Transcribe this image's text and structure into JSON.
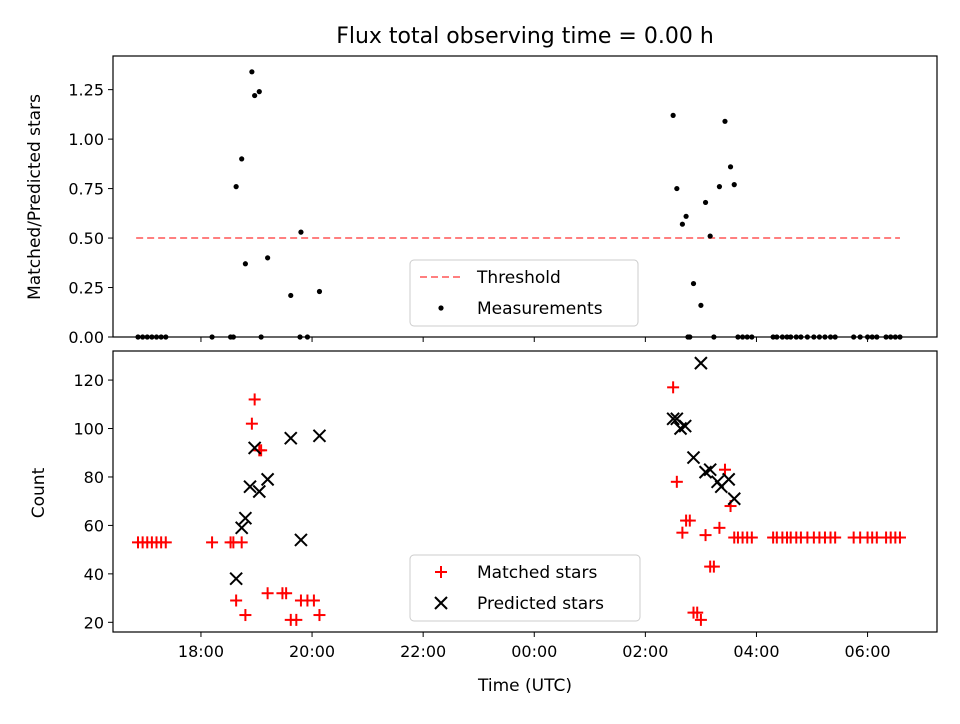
{
  "chart_data": [
    {
      "type": "scatter",
      "title": "Flux total observing time = 0.00 h",
      "xlabel": "",
      "ylabel": "Matched/Predicted stars",
      "ylim": [
        0,
        1.42
      ],
      "yticks": [
        "0.00",
        "0.25",
        "0.50",
        "0.75",
        "1.00",
        "1.25"
      ],
      "legend": {
        "placement": "bottom-center",
        "entries": [
          "Threshold",
          "Measurements"
        ]
      },
      "threshold": {
        "name": "Threshold",
        "value": 0.5,
        "x_start": "16:50",
        "x_end": "06:35",
        "color": "#ff7f7f"
      },
      "series": [
        {
          "name": "Measurements",
          "color": "#000000",
          "points": [
            [
              "16:52",
              0
            ],
            [
              "16:57",
              0
            ],
            [
              "17:02",
              0
            ],
            [
              "17:07",
              0
            ],
            [
              "17:12",
              0
            ],
            [
              "17:17",
              0
            ],
            [
              "17:22",
              0
            ],
            [
              "18:12",
              0
            ],
            [
              "18:32",
              0
            ],
            [
              "18:35",
              0
            ],
            [
              "18:38",
              0.76
            ],
            [
              "18:44",
              0.9
            ],
            [
              "18:48",
              0.37
            ],
            [
              "18:55",
              1.34
            ],
            [
              "18:58",
              1.22
            ],
            [
              "19:03",
              1.24
            ],
            [
              "19:05",
              0
            ],
            [
              "19:12",
              0.4
            ],
            [
              "19:37",
              0.21
            ],
            [
              "19:48",
              0.53
            ],
            [
              "20:08",
              0.23
            ],
            [
              "19:47",
              0
            ],
            [
              "19:55",
              0
            ],
            [
              "02:30",
              1.12
            ],
            [
              "02:34",
              0.75
            ],
            [
              "02:40",
              0.57
            ],
            [
              "02:44",
              0.61
            ],
            [
              "02:46",
              0
            ],
            [
              "02:48",
              0
            ],
            [
              "02:52",
              0.27
            ],
            [
              "03:00",
              0.16
            ],
            [
              "03:05",
              0.68
            ],
            [
              "03:10",
              0.51
            ],
            [
              "03:14",
              0
            ],
            [
              "03:20",
              0.76
            ],
            [
              "03:26",
              1.09
            ],
            [
              "03:32",
              0.86
            ],
            [
              "03:36",
              0.77
            ],
            [
              "03:40",
              0
            ],
            [
              "03:45",
              0
            ],
            [
              "03:50",
              0
            ],
            [
              "03:55",
              0
            ],
            [
              "04:18",
              0
            ],
            [
              "04:22",
              0
            ],
            [
              "04:28",
              0
            ],
            [
              "04:33",
              0
            ],
            [
              "04:37",
              0
            ],
            [
              "04:43",
              0
            ],
            [
              "04:48",
              0
            ],
            [
              "04:55",
              0
            ],
            [
              "05:02",
              0
            ],
            [
              "05:08",
              0
            ],
            [
              "05:14",
              0
            ],
            [
              "05:20",
              0
            ],
            [
              "05:25",
              0
            ],
            [
              "05:45",
              0
            ],
            [
              "05:52",
              0
            ],
            [
              "06:00",
              0
            ],
            [
              "06:05",
              0
            ],
            [
              "06:10",
              0
            ],
            [
              "06:20",
              0
            ],
            [
              "06:25",
              0
            ],
            [
              "06:30",
              0
            ],
            [
              "06:35",
              0
            ]
          ]
        }
      ]
    },
    {
      "type": "scatter",
      "title": "",
      "xlabel": "Time (UTC)",
      "ylabel": "Count",
      "ylim": [
        16,
        132
      ],
      "yticks": [
        "20",
        "40",
        "60",
        "80",
        "100",
        "120"
      ],
      "xlim": [
        "16:25",
        "07:15"
      ],
      "xticks": [
        "18:00",
        "20:00",
        "22:00",
        "00:00",
        "02:00",
        "04:00",
        "06:00"
      ],
      "legend": {
        "placement": "bottom-center",
        "entries": [
          "Matched stars",
          "Predicted stars"
        ]
      },
      "series": [
        {
          "name": "Matched stars",
          "color": "#ff0000",
          "marker": "plus",
          "points": [
            [
              "16:52",
              53
            ],
            [
              "16:57",
              53
            ],
            [
              "17:02",
              53
            ],
            [
              "17:07",
              53
            ],
            [
              "17:12",
              53
            ],
            [
              "17:17",
              53
            ],
            [
              "17:22",
              53
            ],
            [
              "18:12",
              53
            ],
            [
              "18:32",
              53
            ],
            [
              "18:35",
              53
            ],
            [
              "18:38",
              29
            ],
            [
              "18:44",
              53
            ],
            [
              "18:48",
              23
            ],
            [
              "18:55",
              102
            ],
            [
              "18:58",
              112
            ],
            [
              "19:03",
              91
            ],
            [
              "19:05",
              91
            ],
            [
              "19:12",
              32
            ],
            [
              "19:28",
              32
            ],
            [
              "19:32",
              32
            ],
            [
              "19:37",
              21
            ],
            [
              "19:43",
              21
            ],
            [
              "19:48",
              29
            ],
            [
              "19:55",
              29
            ],
            [
              "20:02",
              29
            ],
            [
              "20:08",
              23
            ],
            [
              "02:30",
              117
            ],
            [
              "02:34",
              78
            ],
            [
              "02:40",
              57
            ],
            [
              "02:44",
              62
            ],
            [
              "02:48",
              62
            ],
            [
              "02:52",
              24
            ],
            [
              "02:56",
              24
            ],
            [
              "03:00",
              21
            ],
            [
              "03:05",
              56
            ],
            [
              "03:10",
              43
            ],
            [
              "03:14",
              43
            ],
            [
              "03:20",
              59
            ],
            [
              "03:26",
              83
            ],
            [
              "03:32",
              68
            ],
            [
              "03:36",
              55
            ],
            [
              "03:40",
              55
            ],
            [
              "03:45",
              55
            ],
            [
              "03:50",
              55
            ],
            [
              "03:55",
              55
            ],
            [
              "04:18",
              55
            ],
            [
              "04:22",
              55
            ],
            [
              "04:28",
              55
            ],
            [
              "04:33",
              55
            ],
            [
              "04:37",
              55
            ],
            [
              "04:43",
              55
            ],
            [
              "04:48",
              55
            ],
            [
              "04:55",
              55
            ],
            [
              "05:02",
              55
            ],
            [
              "05:08",
              55
            ],
            [
              "05:14",
              55
            ],
            [
              "05:20",
              55
            ],
            [
              "05:25",
              55
            ],
            [
              "05:45",
              55
            ],
            [
              "05:52",
              55
            ],
            [
              "06:00",
              55
            ],
            [
              "06:05",
              55
            ],
            [
              "06:10",
              55
            ],
            [
              "06:20",
              55
            ],
            [
              "06:25",
              55
            ],
            [
              "06:30",
              55
            ],
            [
              "06:35",
              55
            ]
          ]
        },
        {
          "name": "Predicted stars",
          "color": "#000000",
          "marker": "x",
          "points": [
            [
              "18:38",
              38
            ],
            [
              "18:44",
              59
            ],
            [
              "18:48",
              63
            ],
            [
              "18:53",
              76
            ],
            [
              "18:58",
              92
            ],
            [
              "19:03",
              74
            ],
            [
              "19:12",
              79
            ],
            [
              "19:37",
              96
            ],
            [
              "19:48",
              54
            ],
            [
              "20:08",
              97
            ],
            [
              "02:30",
              104
            ],
            [
              "02:34",
              104
            ],
            [
              "02:38",
              100
            ],
            [
              "02:43",
              101
            ],
            [
              "02:52",
              88
            ],
            [
              "03:00",
              127
            ],
            [
              "03:05",
              82
            ],
            [
              "03:10",
              83
            ],
            [
              "03:18",
              78
            ],
            [
              "03:22",
              76
            ],
            [
              "03:30",
              79
            ],
            [
              "03:36",
              71
            ]
          ]
        }
      ]
    }
  ]
}
